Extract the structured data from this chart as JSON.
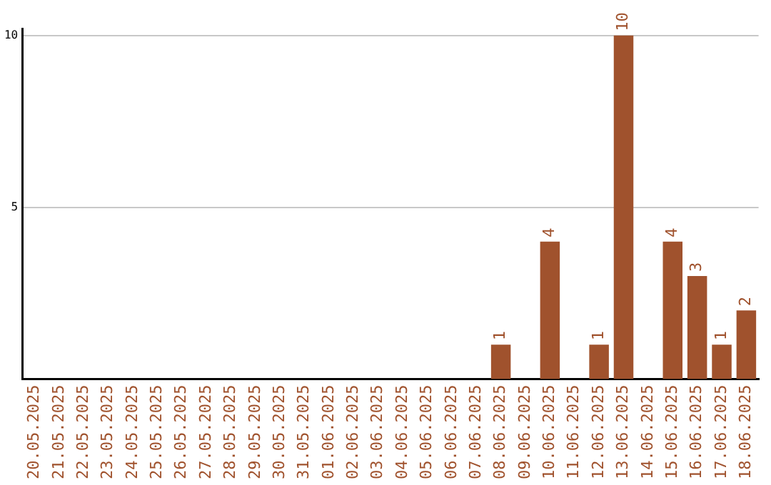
{
  "chart_data": {
    "type": "bar",
    "categories": [
      "20.05.2025",
      "21.05.2025",
      "22.05.2025",
      "23.05.2025",
      "24.05.2025",
      "25.05.2025",
      "26.05.2025",
      "27.05.2025",
      "28.05.2025",
      "29.05.2025",
      "30.05.2025",
      "31.05.2025",
      "01.06.2025",
      "02.06.2025",
      "03.06.2025",
      "04.06.2025",
      "05.06.2025",
      "06.06.2025",
      "07.06.2025",
      "08.06.2025",
      "09.06.2025",
      "10.06.2025",
      "11.06.2025",
      "12.06.2025",
      "13.06.2025",
      "14.06.2025",
      "15.06.2025",
      "16.06.2025",
      "17.06.2025",
      "18.06.2025"
    ],
    "values": [
      0,
      0,
      0,
      0,
      0,
      0,
      0,
      0,
      0,
      0,
      0,
      0,
      0,
      0,
      0,
      0,
      0,
      0,
      0,
      1,
      0,
      4,
      0,
      1,
      10,
      0,
      4,
      3,
      1,
      2
    ],
    "value_labels": [
      null,
      null,
      null,
      null,
      null,
      null,
      null,
      null,
      null,
      null,
      null,
      null,
      null,
      null,
      null,
      null,
      null,
      null,
      null,
      "1",
      null,
      "4",
      null,
      "1",
      "10",
      null,
      "4",
      "3",
      "1",
      "2"
    ],
    "color": "#a0522d",
    "ylim": [
      0,
      10.2
    ],
    "yticks": [
      5,
      10
    ],
    "grid": "y",
    "legend": false
  }
}
